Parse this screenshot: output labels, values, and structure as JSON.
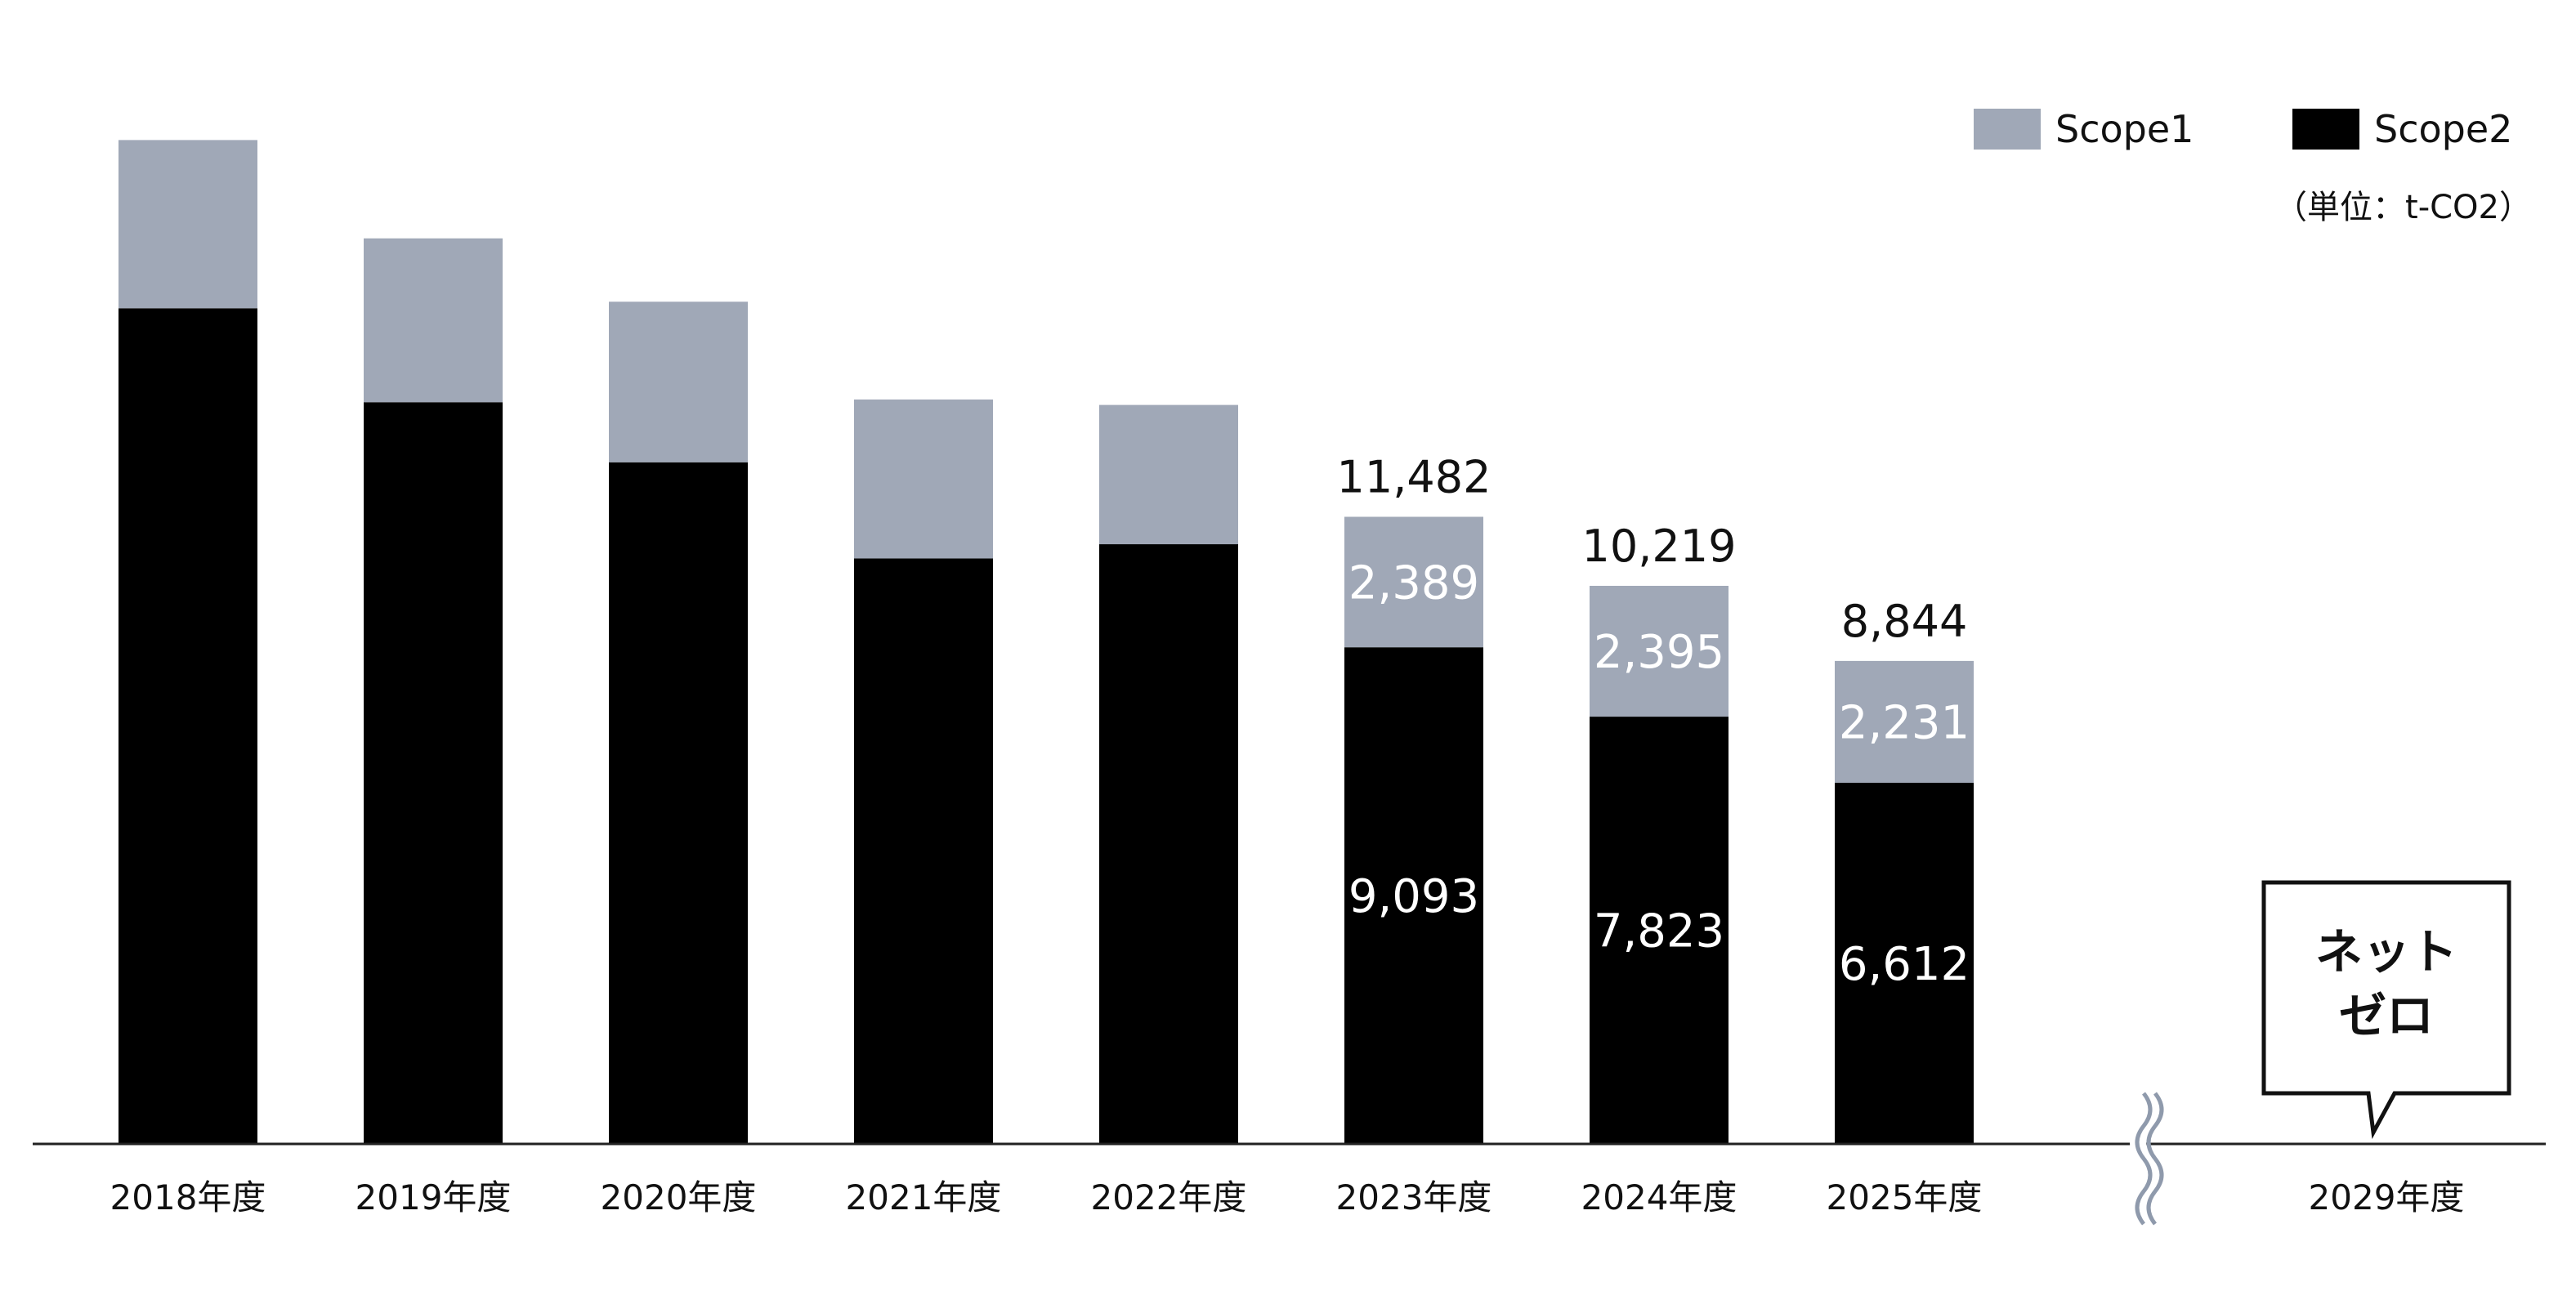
{
  "chart_data": {
    "type": "bar",
    "stacked": true,
    "unit": "（単位：t-CO2）",
    "categories": [
      "2018年度",
      "2019年度",
      "2020年度",
      "2021年度",
      "2022年度",
      "2023年度",
      "2024年度",
      "2025年度",
      "2029年度"
    ],
    "series": [
      {
        "name": "Scope2",
        "color": "#000000",
        "values": [
          15300,
          13580,
          12480,
          10720,
          10980,
          9093,
          7823,
          6612,
          0
        ]
      },
      {
        "name": "Scope1",
        "color": "#a0a8b7",
        "values": [
          3080,
          3000,
          2940,
          2910,
          2550,
          2389,
          2395,
          2231,
          0
        ]
      }
    ],
    "data_labels": {
      "Scope2": [
        "",
        "",
        "",
        "",
        "",
        "9,093",
        "7,823",
        "6,612",
        ""
      ],
      "Scope1": [
        "",
        "",
        "",
        "",
        "",
        "2,389",
        "2,395",
        "2,231",
        ""
      ]
    },
    "totals": [
      "",
      "",
      "",
      "",
      "",
      "11,482",
      "10,219",
      "8,844",
      ""
    ],
    "ylim": [
      0,
      18700
    ],
    "axis_break_before": "2029年度",
    "callout": {
      "category": "2029年度",
      "lines": [
        "ネット",
        "ゼロ"
      ]
    },
    "legend": {
      "position": "top-right",
      "entries": [
        "Scope1",
        "Scope2"
      ]
    },
    "grid": false
  },
  "colors": {
    "scope1": "#a0a8b7",
    "scope2": "#000000",
    "axis": "#222222"
  }
}
